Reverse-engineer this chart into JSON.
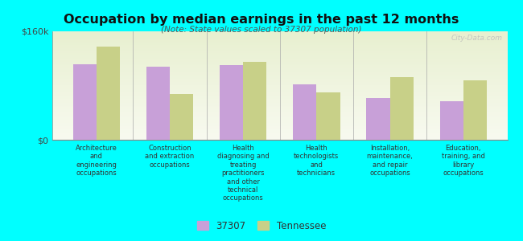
{
  "title": "Occupation by median earnings in the past 12 months",
  "subtitle": "(Note: State values scaled to 37307 population)",
  "background_color": "#00FFFF",
  "plot_bg_top": "#e8f0d0",
  "plot_bg_bottom": "#f5f8ec",
  "categories": [
    "Architecture\nand\nengineering\noccupations",
    "Construction\nand extraction\noccupations",
    "Health\ndiagnosing and\ntreating\npractitioners\nand other\ntechnical\noccupations",
    "Health\ntechnologists\nand\ntechnicians",
    "Installation,\nmaintenance,\nand repair\noccupations",
    "Education,\ntraining, and\nlibrary\noccupations"
  ],
  "values_37307": [
    112000,
    108000,
    110000,
    82000,
    62000,
    57000
  ],
  "values_tennessee": [
    138000,
    68000,
    115000,
    70000,
    92000,
    88000
  ],
  "color_37307": "#c8a0d8",
  "color_tennessee": "#c8d088",
  "ylim": [
    0,
    160000
  ],
  "yticks": [
    0,
    160000
  ],
  "ytick_labels": [
    "$0",
    "$160k"
  ],
  "legend_37307": "37307",
  "legend_tennessee": "Tennessee",
  "watermark": "City-Data.com"
}
